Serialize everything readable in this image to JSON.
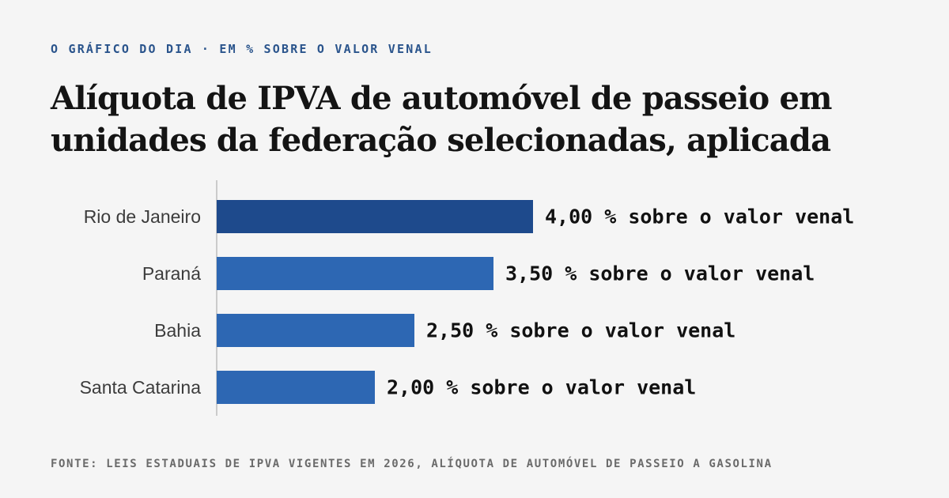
{
  "header": {
    "kicker": "O GRÁFICO DO DIA · EM % SOBRE O VALOR VENAL"
  },
  "footer": {
    "source": "FONTE: LEIS ESTADUAIS DE IPVA VIGENTES EM 2026, ALÍQUOTA DE AUTOMÓVEL DE PASSEIO A GASOLINA"
  },
  "colors": {
    "highlight_bar": "#1e4a8c",
    "bar": "#2d67b3",
    "axis": "#bdbdbd"
  },
  "chart_data": {
    "type": "bar",
    "orientation": "horizontal",
    "title": "Alíquota de IPVA de automóvel de passeio em unidades da federação selecionadas, aplicada",
    "categories": [
      "Rio de Janeiro",
      "Paraná",
      "Bahia",
      "Santa Catarina"
    ],
    "values": [
      4.0,
      3.5,
      2.5,
      2.0
    ],
    "value_labels": [
      "4,00 % sobre o valor venal",
      "3,50 % sobre o valor venal",
      "2,50 % sobre o valor venal",
      "2,00 % sobre o valor venal"
    ],
    "highlight_index": 0,
    "xlim": [
      0,
      4.0
    ],
    "grid": false,
    "legend": "none"
  }
}
